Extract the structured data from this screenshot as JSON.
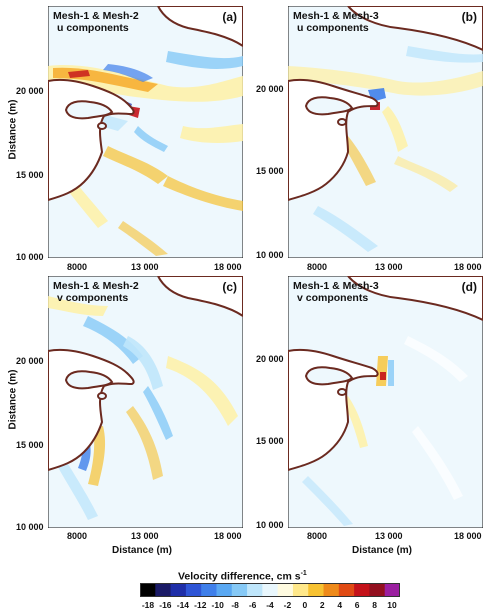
{
  "panels": [
    {
      "id": "a",
      "letter": "(a)",
      "line1": "Mesh-1 & Mesh-2",
      "line2": "u components"
    },
    {
      "id": "b",
      "letter": "(b)",
      "line1": "Mesh-1 & Mesh-3",
      "line2": "u components"
    },
    {
      "id": "c",
      "letter": "(c)",
      "line1": "Mesh-1 & Mesh-2",
      "line2": "v components"
    },
    {
      "id": "d",
      "letter": "(d)",
      "line1": "Mesh-1 & Mesh-3",
      "line2": "v components"
    }
  ],
  "axes": {
    "ylabel": "Distance (m)",
    "xlabel": "Distance (m)",
    "yticks": [
      "20 000",
      "15 000",
      "10 000"
    ],
    "xticks": [
      "8000",
      "13 000",
      "18 000"
    ]
  },
  "colorbar": {
    "title_main": "Velocity difference, cm s",
    "title_sup": "-1",
    "ticks": [
      "-18",
      "-16",
      "-14",
      "-12",
      "-10",
      "-8",
      "-6",
      "-4",
      "-2",
      "0",
      "2",
      "4",
      "6",
      "8",
      "10"
    ],
    "colors": [
      "#000000",
      "#1a1a66",
      "#1f2ea8",
      "#2f55d6",
      "#3f7fea",
      "#5aa8f2",
      "#86c9f6",
      "#bfe6fb",
      "#e9f7fd",
      "#fffbe0",
      "#ffe88a",
      "#f7c232",
      "#ee8a1a",
      "#e04a14",
      "#c4121a",
      "#93101f",
      "#9b1fa0"
    ]
  },
  "colors": {
    "coast": "#6b2a20",
    "background": "#eef8fd"
  }
}
